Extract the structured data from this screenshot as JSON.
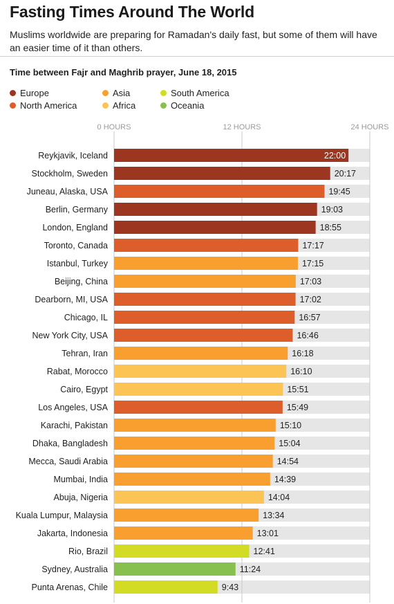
{
  "title": "Fasting Times Around The World",
  "subtitle": "Muslims worldwide are preparing for Ramadan's daily fast, but some of them will have an easier time of it than others.",
  "chart_heading": "Time between Fajr and Maghrib prayer, June 18, 2015",
  "legend": [
    {
      "label": "Europe",
      "color": "#9c3620"
    },
    {
      "label": "North America",
      "color": "#dd5e2a"
    },
    {
      "label": "Asia",
      "color": "#f99f30"
    },
    {
      "label": "Africa",
      "color": "#fcc455"
    },
    {
      "label": "South America",
      "color": "#d2dc24"
    },
    {
      "label": "Oceania",
      "color": "#88c050"
    }
  ],
  "chart_data": {
    "type": "bar",
    "orientation": "horizontal",
    "x_unit": "hours",
    "xlim": [
      0,
      24
    ],
    "xticks": [
      {
        "value": 0,
        "label": "0 HOURS"
      },
      {
        "value": 12,
        "label": "12 HOURS"
      },
      {
        "value": 24,
        "label": "24 HOURS"
      }
    ],
    "colors": {
      "Europe": "#9c3620",
      "North America": "#dd5e2a",
      "Asia": "#f99f30",
      "Africa": "#fcc455",
      "South America": "#d2dc24",
      "Oceania": "#88c050"
    },
    "track_color": "#e6e6e6",
    "rows": [
      {
        "city": "Reykjavik, Iceland",
        "time": "22:00",
        "region": "Europe"
      },
      {
        "city": "Stockholm, Sweden",
        "time": "20:17",
        "region": "Europe"
      },
      {
        "city": "Juneau, Alaska, USA",
        "time": "19:45",
        "region": "North America"
      },
      {
        "city": "Berlin, Germany",
        "time": "19:03",
        "region": "Europe"
      },
      {
        "city": "London, England",
        "time": "18:55",
        "region": "Europe"
      },
      {
        "city": "Toronto, Canada",
        "time": "17:17",
        "region": "North America"
      },
      {
        "city": "Istanbul, Turkey",
        "time": "17:15",
        "region": "Asia"
      },
      {
        "city": "Beijing, China",
        "time": "17:03",
        "region": "Asia"
      },
      {
        "city": "Dearborn, MI, USA",
        "time": "17:02",
        "region": "North America"
      },
      {
        "city": "Chicago, IL",
        "time": "16:57",
        "region": "North America"
      },
      {
        "city": "New York City, USA",
        "time": "16:46",
        "region": "North America"
      },
      {
        "city": "Tehran, Iran",
        "time": "16:18",
        "region": "Asia"
      },
      {
        "city": "Rabat, Morocco",
        "time": "16:10",
        "region": "Africa"
      },
      {
        "city": "Cairo, Egypt",
        "time": "15:51",
        "region": "Africa"
      },
      {
        "city": "Los Angeles, USA",
        "time": "15:49",
        "region": "North America"
      },
      {
        "city": "Karachi, Pakistan",
        "time": "15:10",
        "region": "Asia"
      },
      {
        "city": "Dhaka, Bangladesh",
        "time": "15:04",
        "region": "Asia"
      },
      {
        "city": "Mecca, Saudi Arabia",
        "time": "14:54",
        "region": "Asia"
      },
      {
        "city": "Mumbai, India",
        "time": "14:39",
        "region": "Asia"
      },
      {
        "city": "Abuja, Nigeria",
        "time": "14:04",
        "region": "Africa"
      },
      {
        "city": "Kuala Lumpur, Malaysia",
        "time": "13:34",
        "region": "Asia"
      },
      {
        "city": "Jakarta, Indonesia",
        "time": "13:01",
        "region": "Asia"
      },
      {
        "city": "Rio, Brazil",
        "time": "12:41",
        "region": "South America"
      },
      {
        "city": "Sydney, Australia",
        "time": "11:24",
        "region": "Oceania"
      },
      {
        "city": "Punta Arenas, Chile",
        "time": "9:43",
        "region": "South America"
      }
    ]
  }
}
